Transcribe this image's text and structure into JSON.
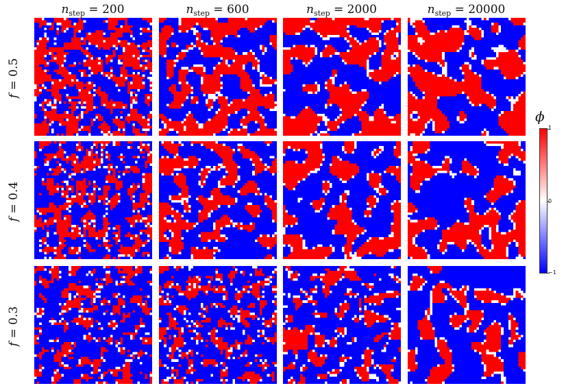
{
  "chart_data": {
    "type": "heatmap",
    "column_headers": [
      {
        "var": "n",
        "sub": "step",
        "rest": " = 200"
      },
      {
        "var": "n",
        "sub": "step",
        "rest": " = 600"
      },
      {
        "var": "n",
        "sub": "step",
        "rest": " = 2000"
      },
      {
        "var": "n",
        "sub": "step",
        "rest": " = 20000"
      }
    ],
    "row_headers": [
      {
        "var": "f",
        "rest": " = 0.5"
      },
      {
        "var": "f",
        "rest": " = 0.4"
      },
      {
        "var": "f",
        "rest": " = 0.3"
      }
    ],
    "n_step": [
      200,
      600,
      2000,
      20000
    ],
    "f": [
      0.5,
      0.4,
      0.3
    ],
    "colorbar": {
      "label": "ϕ",
      "range": [
        -1,
        1
      ],
      "ticks": [
        "1",
        "0",
        "−1"
      ],
      "colors": {
        "low": "#0000ff",
        "mid": "#ffffff",
        "high": "#ff0000"
      }
    }
  }
}
